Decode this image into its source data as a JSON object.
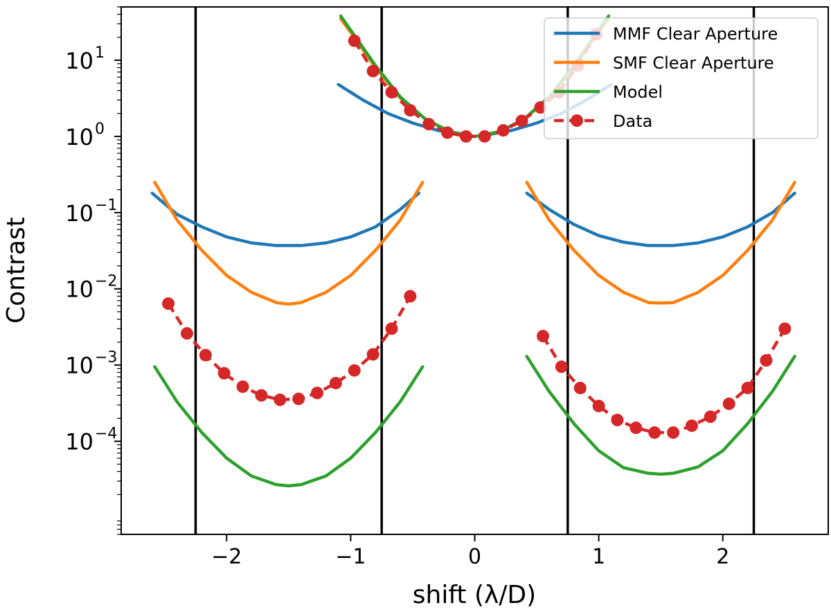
{
  "chart_data": {
    "type": "line",
    "xlabel": "shift (λ/D)",
    "ylabel": "Contrast",
    "yscale": "log",
    "xlim": [
      -2.85,
      2.85
    ],
    "ylim": [
      6e-06,
      50
    ],
    "x_ticks": [
      -2,
      -1,
      0,
      1,
      2
    ],
    "x_tick_labels": [
      "−2",
      "−1",
      "0",
      "1",
      "2"
    ],
    "y_ticks": [
      {
        "value": 10,
        "base": "10",
        "exp": "1"
      },
      {
        "value": 1,
        "base": "10",
        "exp": "0"
      },
      {
        "value": 0.1,
        "base": "10",
        "exp": "−1"
      },
      {
        "value": 0.01,
        "base": "10",
        "exp": "−2"
      },
      {
        "value": 0.001,
        "base": "10",
        "exp": "−3"
      },
      {
        "value": 0.0001,
        "base": "10",
        "exp": "−4"
      }
    ],
    "vertical_lines": [
      -2.25,
      -0.75,
      0.75,
      2.25
    ],
    "legend_position": "top-right",
    "colors": {
      "mmf": "#1f77b4",
      "smf": "#ff7f0e",
      "model": "#2ca02c",
      "data": "#d62728",
      "vline": "#000000"
    },
    "series": [
      {
        "name": "MMF Clear Aperture",
        "style": "solid",
        "color": "#1f77b4",
        "segments": [
          {
            "x": [
              -1.1,
              -0.9,
              -0.7,
              -0.5,
              -0.3,
              -0.1,
              0.0,
              0.1,
              0.3,
              0.5,
              0.7,
              0.9,
              1.1
            ],
            "y": [
              4.8,
              3.0,
              2.0,
              1.5,
              1.2,
              1.05,
              1.0,
              1.05,
              1.2,
              1.5,
              2.0,
              3.0,
              4.8
            ]
          },
          {
            "x": [
              -2.6,
              -2.4,
              -2.2,
              -2.0,
              -1.8,
              -1.6,
              -1.5,
              -1.4,
              -1.2,
              -1.0,
              -0.8,
              -0.6,
              -0.45
            ],
            "y": [
              0.18,
              0.095,
              0.065,
              0.048,
              0.04,
              0.037,
              0.037,
              0.037,
              0.04,
              0.048,
              0.065,
              0.11,
              0.18
            ]
          },
          {
            "x": [
              0.42,
              0.6,
              0.8,
              1.0,
              1.2,
              1.4,
              1.5,
              1.6,
              1.8,
              2.0,
              2.2,
              2.4,
              2.58
            ],
            "y": [
              0.18,
              0.11,
              0.07,
              0.05,
              0.041,
              0.037,
              0.037,
              0.037,
              0.04,
              0.048,
              0.065,
              0.1,
              0.18
            ]
          }
        ]
      },
      {
        "name": "SMF Clear Aperture",
        "style": "solid",
        "color": "#ff7f0e",
        "segments": [
          {
            "x": [
              -1.08,
              -0.95,
              -0.8,
              -0.6,
              -0.4,
              -0.2,
              0.0,
              0.2,
              0.4,
              0.6,
              0.8,
              0.95,
              1.08
            ],
            "y": [
              35,
              18,
              8,
              3.2,
              1.7,
              1.15,
              1.0,
              1.15,
              1.7,
              3.2,
              8,
              18,
              35
            ]
          },
          {
            "x": [
              -2.58,
              -2.4,
              -2.2,
              -2.0,
              -1.8,
              -1.6,
              -1.5,
              -1.4,
              -1.2,
              -1.0,
              -0.8,
              -0.6,
              -0.42
            ],
            "y": [
              0.25,
              0.08,
              0.032,
              0.015,
              0.009,
              0.0066,
              0.0063,
              0.0066,
              0.009,
              0.015,
              0.032,
              0.08,
              0.25
            ]
          },
          {
            "x": [
              0.42,
              0.6,
              0.8,
              1.0,
              1.2,
              1.4,
              1.5,
              1.6,
              1.8,
              2.0,
              2.2,
              2.4,
              2.58
            ],
            "y": [
              0.25,
              0.08,
              0.032,
              0.015,
              0.009,
              0.0066,
              0.0065,
              0.0066,
              0.009,
              0.015,
              0.032,
              0.08,
              0.25
            ]
          }
        ]
      },
      {
        "name": "Model",
        "style": "solid",
        "color": "#2ca02c",
        "segments": [
          {
            "x": [
              -1.08,
              -0.95,
              -0.8,
              -0.6,
              -0.4,
              -0.2,
              0.0,
              0.2,
              0.4,
              0.6,
              0.8,
              0.95,
              1.08
            ],
            "y": [
              38,
              19,
              8.5,
              3.3,
              1.7,
              1.15,
              1.0,
              1.15,
              1.7,
              3.3,
              8.5,
              19,
              38
            ]
          },
          {
            "x": [
              -2.58,
              -2.4,
              -2.2,
              -2.0,
              -1.8,
              -1.6,
              -1.5,
              -1.4,
              -1.2,
              -1.0,
              -0.8,
              -0.6,
              -0.42
            ],
            "y": [
              0.00095,
              0.00033,
              0.00013,
              6e-05,
              3.5e-05,
              2.7e-05,
              2.6e-05,
              2.7e-05,
              3.5e-05,
              6e-05,
              0.00013,
              0.00033,
              0.00095
            ]
          },
          {
            "x": [
              0.42,
              0.6,
              0.8,
              1.0,
              1.2,
              1.4,
              1.5,
              1.6,
              1.8,
              2.0,
              2.2,
              2.4,
              2.58
            ],
            "y": [
              0.0013,
              0.00045,
              0.00017,
              7.5e-05,
              4.5e-05,
              3.8e-05,
              3.7e-05,
              3.8e-05,
              4.6e-05,
              7.5e-05,
              0.00017,
              0.00045,
              0.0013
            ]
          }
        ]
      },
      {
        "name": "Data",
        "style": "dashed-markers",
        "color": "#d62728",
        "segments": [
          {
            "x": [
              -0.97,
              -0.82,
              -0.67,
              -0.52,
              -0.37,
              -0.22,
              -0.07,
              0.08,
              0.23,
              0.38,
              0.53,
              0.68,
              0.83,
              0.98
            ],
            "y": [
              18,
              7.2,
              3.8,
              2.2,
              1.45,
              1.12,
              1.0,
              1.0,
              1.2,
              1.6,
              2.4,
              3.8,
              8.5,
              22
            ]
          },
          {
            "x": [
              -2.47,
              -2.32,
              -2.17,
              -2.02,
              -1.87,
              -1.72,
              -1.57,
              -1.42,
              -1.27,
              -1.12,
              -0.97,
              -0.82,
              -0.67,
              -0.52
            ],
            "y": [
              0.0064,
              0.0026,
              0.00135,
              0.00078,
              0.00052,
              0.0004,
              0.00035,
              0.00036,
              0.00043,
              0.00058,
              0.00085,
              0.00138,
              0.003,
              0.008
            ]
          },
          {
            "x": [
              0.55,
              0.7,
              0.85,
              1.0,
              1.15,
              1.3,
              1.45,
              1.6,
              1.75,
              1.9,
              2.05,
              2.2,
              2.35,
              2.5
            ],
            "y": [
              0.0024,
              0.00095,
              0.0005,
              0.00029,
              0.00019,
              0.00015,
              0.00013,
              0.00013,
              0.00016,
              0.00021,
              0.00031,
              0.0005,
              0.00115,
              0.003
            ]
          }
        ]
      }
    ]
  }
}
